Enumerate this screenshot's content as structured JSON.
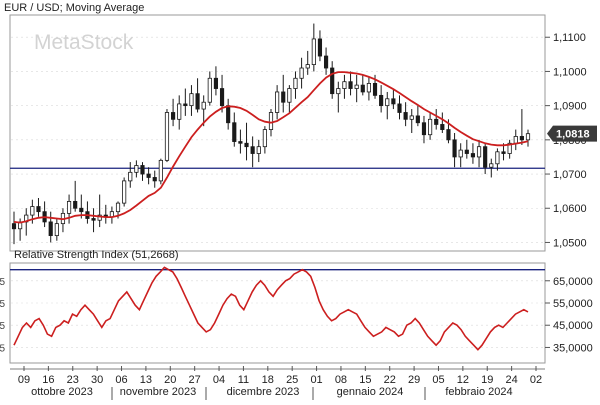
{
  "watermark": "MetaStock",
  "chart_data": [
    {
      "type": "candlestick",
      "title": "EUR / USD; Moving Average",
      "ylim": [
        1.0475,
        1.1165
      ],
      "y_ticks": [
        1.05,
        1.06,
        1.07,
        1.08,
        1.09,
        1.1,
        1.11
      ],
      "y_tick_labels": [
        "1,0500",
        "1,0600",
        "1,0700",
        "1,0800",
        "1,0900",
        "1,1000",
        "1,1100"
      ],
      "last_price_label": "1,0818",
      "horizontal_line": 1.0717,
      "ohlc": [
        [
          1.0555,
          1.059,
          1.0495,
          1.054
        ],
        [
          1.054,
          1.057,
          1.0505,
          1.056
        ],
        [
          1.056,
          1.06,
          1.052,
          1.058
        ],
        [
          1.058,
          1.0625,
          1.0555,
          1.0605
        ],
        [
          1.0605,
          1.063,
          1.0575,
          1.059
        ],
        [
          1.059,
          1.062,
          1.0545,
          1.056
        ],
        [
          1.056,
          1.059,
          1.05,
          1.052
        ],
        [
          1.052,
          1.057,
          1.0505,
          1.0555
        ],
        [
          1.0555,
          1.06,
          1.053,
          1.0585
        ],
        [
          1.0585,
          1.064,
          1.0555,
          1.062
        ],
        [
          1.062,
          1.068,
          1.059,
          1.06
        ],
        [
          1.06,
          1.064,
          1.057,
          1.059
        ],
        [
          1.059,
          1.062,
          1.0555,
          1.057
        ],
        [
          1.057,
          1.06,
          1.053,
          1.0565
        ],
        [
          1.0565,
          1.064,
          1.0545,
          1.058
        ],
        [
          1.058,
          1.061,
          1.0555,
          1.0575
        ],
        [
          1.0575,
          1.0605,
          1.0555,
          1.059
        ],
        [
          1.059,
          1.062,
          1.057,
          1.0615
        ],
        [
          1.0615,
          1.069,
          1.0605,
          1.068
        ],
        [
          1.068,
          1.0735,
          1.066,
          1.0705
        ],
        [
          1.0705,
          1.074,
          1.069,
          1.0725
        ],
        [
          1.0725,
          1.0735,
          1.068,
          1.07
        ],
        [
          1.07,
          1.072,
          1.067,
          1.069
        ],
        [
          1.069,
          1.071,
          1.066,
          1.068
        ],
        [
          1.068,
          1.0745,
          1.067,
          1.074
        ],
        [
          1.074,
          1.089,
          1.0735,
          1.088
        ],
        [
          1.088,
          1.092,
          1.084,
          1.086
        ],
        [
          1.086,
          1.093,
          1.083,
          1.0905
        ],
        [
          1.0905,
          1.095,
          1.087,
          1.09
        ],
        [
          1.09,
          1.096,
          1.087,
          1.0935
        ],
        [
          1.0935,
          1.098,
          1.088,
          1.089
        ],
        [
          1.089,
          1.093,
          1.084,
          1.091
        ],
        [
          1.091,
          1.1,
          1.09,
          1.098
        ],
        [
          1.098,
          1.1015,
          1.093,
          1.095
        ],
        [
          1.095,
          1.099,
          1.088,
          1.09
        ],
        [
          1.09,
          1.092,
          1.083,
          1.085
        ],
        [
          1.085,
          1.088,
          1.078,
          1.0795
        ],
        [
          1.0795,
          1.083,
          1.076,
          1.079
        ],
        [
          1.079,
          1.085,
          1.074,
          1.078
        ],
        [
          1.078,
          1.081,
          1.072,
          1.076
        ],
        [
          1.076,
          1.08,
          1.0735,
          1.078
        ],
        [
          1.078,
          1.084,
          1.076,
          1.083
        ],
        [
          1.083,
          1.089,
          1.081,
          1.088
        ],
        [
          1.088,
          1.096,
          1.086,
          1.094
        ],
        [
          1.094,
          1.099,
          1.088,
          1.091
        ],
        [
          1.091,
          1.096,
          1.088,
          1.095
        ],
        [
          1.095,
          1.1,
          1.092,
          1.098
        ],
        [
          1.098,
          1.104,
          1.095,
          1.101
        ],
        [
          1.101,
          1.106,
          1.099,
          1.102
        ],
        [
          1.102,
          1.114,
          1.1,
          1.1095
        ],
        [
          1.1095,
          1.112,
          1.103,
          1.1045
        ],
        [
          1.1045,
          1.107,
          1.099,
          1.101
        ],
        [
          1.101,
          1.103,
          1.092,
          1.0935
        ],
        [
          1.0935,
          1.097,
          1.088,
          1.095
        ],
        [
          1.095,
          1.099,
          1.092,
          1.097
        ],
        [
          1.097,
          1.1,
          1.093,
          1.095
        ],
        [
          1.095,
          1.099,
          1.091,
          1.096
        ],
        [
          1.096,
          1.099,
          1.093,
          1.094
        ],
        [
          1.094,
          1.0985,
          1.0915,
          1.0965
        ],
        [
          1.0965,
          1.099,
          1.092,
          1.093
        ],
        [
          1.093,
          1.096,
          1.088,
          1.09
        ],
        [
          1.09,
          1.094,
          1.086,
          1.092
        ],
        [
          1.092,
          1.095,
          1.089,
          1.0905
        ],
        [
          1.0905,
          1.093,
          1.086,
          1.088
        ],
        [
          1.088,
          1.091,
          1.084,
          1.086
        ],
        [
          1.086,
          1.089,
          1.082,
          1.087
        ],
        [
          1.087,
          1.09,
          1.084,
          1.085
        ],
        [
          1.085,
          1.087,
          1.079,
          1.0815
        ],
        [
          1.0815,
          1.088,
          1.08,
          1.086
        ],
        [
          1.086,
          1.089,
          1.083,
          1.0845
        ],
        [
          1.0845,
          1.088,
          1.082,
          1.083
        ],
        [
          1.083,
          1.086,
          1.079,
          1.08
        ],
        [
          1.08,
          1.082,
          1.072,
          1.075
        ],
        [
          1.075,
          1.079,
          1.072,
          1.077
        ],
        [
          1.077,
          1.08,
          1.0745,
          1.076
        ],
        [
          1.076,
          1.079,
          1.073,
          1.075
        ],
        [
          1.075,
          1.08,
          1.072,
          1.078
        ],
        [
          1.078,
          1.079,
          1.07,
          1.072
        ],
        [
          1.072,
          1.0745,
          1.069,
          1.073
        ],
        [
          1.073,
          1.0775,
          1.071,
          1.0765
        ],
        [
          1.0765,
          1.079,
          1.074,
          1.076
        ],
        [
          1.076,
          1.08,
          1.0745,
          1.079
        ],
        [
          1.079,
          1.083,
          1.077,
          1.081
        ],
        [
          1.081,
          1.089,
          1.0785,
          1.08
        ],
        [
          1.08,
          1.083,
          1.078,
          1.0818
        ]
      ],
      "moving_average": [
        1.056,
        1.0558,
        1.0562,
        1.0568,
        1.0572,
        1.0574,
        1.0572,
        1.057,
        1.0568,
        1.0572,
        1.0578,
        1.058,
        1.058,
        1.0578,
        1.0576,
        1.0574,
        1.0574,
        1.0578,
        1.0585,
        1.0595,
        1.0608,
        1.0622,
        1.0636,
        1.0645,
        1.066,
        1.069,
        1.0722,
        1.0752,
        1.078,
        1.0808,
        1.083,
        1.085,
        1.0868,
        1.0882,
        1.0893,
        1.0898,
        1.0897,
        1.0893,
        1.0885,
        1.0873,
        1.086,
        1.0853,
        1.085,
        1.0855,
        1.0866,
        1.0878,
        1.0894,
        1.091,
        1.0925,
        1.0945,
        1.0965,
        1.0982,
        1.0993,
        1.0998,
        1.0998,
        1.0996,
        1.0994,
        1.099,
        1.0984,
        1.0977,
        1.0968,
        1.0958,
        1.0948,
        1.0937,
        1.0925,
        1.0913,
        1.0902,
        1.089,
        1.088,
        1.087,
        1.086,
        1.0848,
        1.0835,
        1.0823,
        1.0812,
        1.0802,
        1.0796,
        1.079,
        1.0786,
        1.0784,
        1.0784,
        1.0786,
        1.0789,
        1.0792,
        1.0796
      ]
    },
    {
      "type": "line",
      "title": "Relative Strength Index (51,2668)",
      "ylim": [
        28,
        73
      ],
      "y_ticks": [
        35,
        45,
        55,
        65
      ],
      "y_tick_labels": [
        "35,0000",
        "45,0000",
        "55,0000",
        "65,0000"
      ],
      "left_tick_marks": [
        "65",
        "55",
        "45",
        "35"
      ],
      "horizontal_line": 70,
      "values": [
        36,
        40,
        44,
        46,
        44,
        47,
        48,
        45,
        41,
        40,
        44,
        45,
        47,
        46,
        50,
        49,
        52,
        54,
        52,
        50,
        47,
        44,
        47,
        48,
        52,
        56,
        58,
        60,
        57,
        54,
        52,
        56,
        60,
        64,
        67,
        69,
        71,
        70,
        69,
        66,
        62,
        58,
        54,
        50,
        46,
        44,
        42,
        43,
        46,
        50,
        54,
        57,
        59,
        58,
        54,
        52,
        56,
        60,
        63,
        65,
        63,
        60,
        58,
        61,
        63,
        65,
        66,
        68,
        69,
        70,
        69,
        67,
        62,
        56,
        52,
        49,
        47,
        48,
        50,
        51,
        52,
        51,
        50,
        47,
        44,
        42,
        40,
        41,
        42,
        44,
        43,
        42,
        40,
        41,
        45,
        46,
        48,
        46,
        43,
        40,
        38,
        36,
        38,
        42,
        44,
        46,
        45,
        43,
        40,
        38,
        36,
        34,
        36,
        39,
        42,
        44,
        45,
        44,
        46,
        48,
        50,
        51,
        52,
        51
      ]
    }
  ],
  "x_axis": {
    "day_labels": [
      "09",
      "16",
      "23",
      "30",
      "06",
      "13",
      "20",
      "27",
      "04",
      "11",
      "18",
      "25",
      "01",
      "08",
      "15",
      "22",
      "29",
      "05",
      "12",
      "19",
      "24",
      "02"
    ],
    "month_labels": [
      "ottobre 2023",
      "novembre 2023",
      "dicembre 2023",
      "gennaio 2024",
      "febbraio 2024"
    ]
  },
  "colors": {
    "bull": "#1a1a1a",
    "bear": "#1a1a1a",
    "ma_line": "#cc1f1f",
    "rsi_line": "#cc1f1f",
    "hline": "#1a237e",
    "grid": "#d9d9d9",
    "axis": "#555555",
    "price_tag": "#3a3a3a"
  }
}
